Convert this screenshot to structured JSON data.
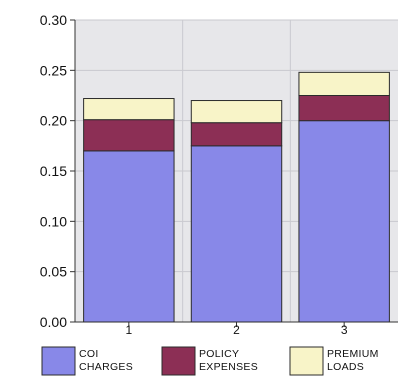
{
  "chart_data": {
    "type": "bar",
    "stacked": true,
    "categories": [
      "1",
      "2",
      "3"
    ],
    "series": [
      {
        "name": "COI CHARGES",
        "values": [
          0.17,
          0.175,
          0.2
        ],
        "color": "#8888e8"
      },
      {
        "name": "POLICY EXPENSES",
        "values": [
          0.031,
          0.023,
          0.025
        ],
        "color": "#8c2f55"
      },
      {
        "name": "PREMIUM LOADS",
        "values": [
          0.021,
          0.022,
          0.023
        ],
        "color": "#f8f4c8"
      }
    ],
    "title": "",
    "xlabel": "",
    "ylabel": "",
    "ylim": [
      0,
      0.3
    ],
    "yticks": [
      "0.00",
      "0.05",
      "0.10",
      "0.15",
      "0.20",
      "0.25",
      "0.30"
    ],
    "grid": true,
    "legend_position": "bottom",
    "legend_labels": [
      [
        "COI",
        "CHARGES"
      ],
      [
        "POLICY",
        "EXPENSES"
      ],
      [
        "PREMIUM",
        "LOADS"
      ]
    ]
  }
}
